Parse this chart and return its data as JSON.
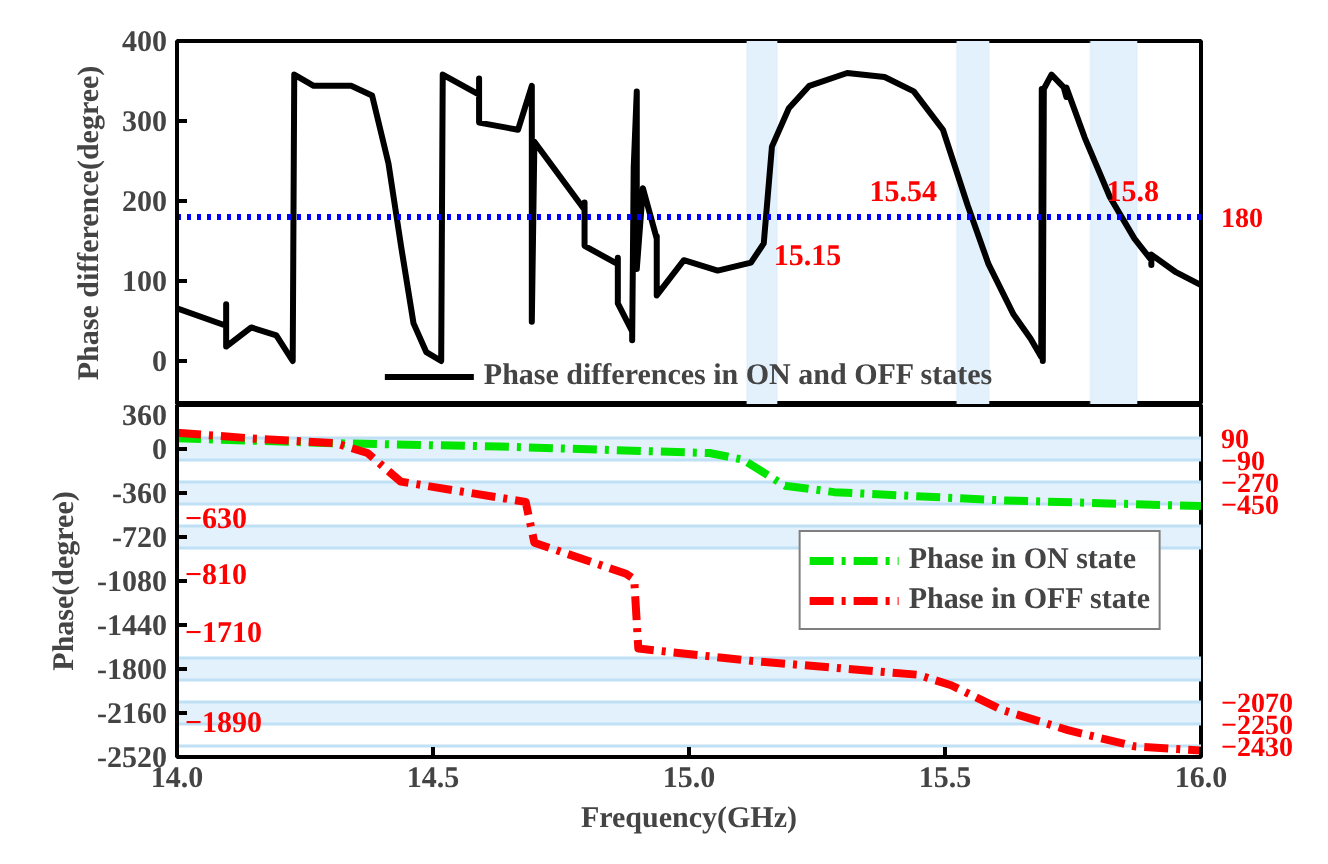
{
  "chart_data": [
    {
      "type": "line",
      "ylabel": "Phase difference(degree)",
      "xlim": [
        14,
        16
      ],
      "ylim": [
        -55,
        400
      ],
      "yticks": [
        0,
        100,
        200,
        300,
        400
      ],
      "tick_labels": "y",
      "legend": "bottom",
      "line_style": "solid",
      "grid": false,
      "series": [
        {
          "name": "Phase differences in ON and OFF states",
          "color": "#000000",
          "x": [
            14.0,
            14.096,
            14.096,
            14.096,
            14.145,
            14.194,
            14.226,
            14.229,
            14.267,
            14.34,
            14.381,
            14.413,
            14.438,
            14.462,
            14.487,
            14.516,
            14.519,
            14.59,
            14.59,
            14.59,
            14.666,
            14.693,
            14.693,
            14.698,
            14.796,
            14.796,
            14.796,
            14.861,
            14.861,
            14.861,
            14.889,
            14.889,
            14.892,
            14.898,
            14.898,
            14.91,
            14.937,
            14.937,
            14.937,
            14.99,
            15.056,
            15.121,
            15.146,
            15.162,
            15.195,
            15.235,
            15.309,
            15.382,
            15.439,
            15.496,
            15.544,
            15.585,
            15.634,
            15.667,
            15.688,
            15.689,
            15.691,
            15.693,
            15.708,
            15.732,
            15.737,
            15.737,
            15.773,
            15.822,
            15.87,
            15.903,
            15.903,
            15.903,
            15.951,
            16.0
          ],
          "values": [
            66,
            44,
            71,
            18,
            42,
            32,
            0,
            358,
            344,
            344,
            332,
            247,
            142,
            47,
            11,
            0,
            358,
            333,
            353,
            298,
            289,
            344,
            49,
            274,
            189,
            198,
            144,
            121,
            129,
            72,
            37,
            26,
            242,
            337,
            115,
            216,
            153,
            156,
            82,
            126,
            113,
            123,
            147,
            268,
            316,
            344,
            360,
            355,
            337,
            289,
            195,
            121,
            58,
            28,
            5,
            340,
            0,
            340,
            358,
            342,
            330,
            342,
            279,
            205,
            153,
            126,
            120,
            133,
            111,
            95
          ]
        }
      ],
      "ref_lines": [
        {
          "axis": "y",
          "value": 180,
          "label": "180",
          "color": "#0000ff",
          "line_style": "dotted"
        }
      ],
      "bands": [
        {
          "axis": "x",
          "from": 15.113,
          "to": 15.172,
          "color": "#e3f1fc"
        },
        {
          "axis": "x",
          "from": 15.523,
          "to": 15.586,
          "color": "#e3f1fc"
        },
        {
          "axis": "x",
          "from": 15.784,
          "to": 15.875,
          "color": "#e3f1fc"
        }
      ],
      "annotations": [
        {
          "text": "15.15",
          "x": 15.15,
          "y": 180
        },
        {
          "text": "15.54",
          "x": 15.54,
          "y": 180
        },
        {
          "text": "15.8",
          "x": 15.8,
          "y": 180
        }
      ]
    },
    {
      "type": "line",
      "xlabel": "Frequency(GHz)",
      "ylabel": "Phase(degree)",
      "xlim": [
        14,
        16
      ],
      "ylim": [
        -2520,
        360
      ],
      "xticks": [
        {
          "value": 14,
          "label": "14.0"
        },
        {
          "value": 14.5,
          "label": "14.5"
        },
        {
          "value": 15,
          "label": "15.0"
        },
        {
          "value": 15.5,
          "label": "15.5"
        },
        {
          "value": 16,
          "label": "16.0"
        }
      ],
      "yticks": [
        360,
        0,
        -360,
        -720,
        -1080,
        -1440,
        -1800,
        -2160,
        -2520
      ],
      "legend": "right",
      "line_style": "dashed",
      "grid": false,
      "series": [
        {
          "name": "Phase in ON state",
          "color": "#00e600",
          "x": [
            14.0,
            14.31,
            14.63,
            15.04,
            15.105,
            15.187,
            15.284,
            15.61,
            16.0
          ],
          "values": [
            87,
            47,
            20,
            -33,
            -87,
            -300,
            -353,
            -420,
            -467
          ]
        },
        {
          "name": "Phase in OFF state",
          "color": "#ff0000",
          "x": [
            14.0,
            14.145,
            14.31,
            14.372,
            14.437,
            14.681,
            14.698,
            14.877,
            14.893,
            14.901,
            15.121,
            15.447,
            15.512,
            15.61,
            15.74,
            15.87,
            16.0
          ],
          "values": [
            133,
            87,
            47,
            -33,
            -267,
            -433,
            -767,
            -1020,
            -1067,
            -1633,
            -1733,
            -1847,
            -1933,
            -2133,
            -2300,
            -2433,
            -2467
          ]
        }
      ],
      "ref_lines": [
        {
          "axis": "y",
          "value": 90,
          "label": "90",
          "color": "#bfe0f5"
        },
        {
          "axis": "y",
          "value": -90,
          "label": "−90",
          "color": "#bfe0f5"
        },
        {
          "axis": "y",
          "value": -270,
          "label": "−270",
          "color": "#bfe0f5"
        },
        {
          "axis": "y",
          "value": -450,
          "label": "−450",
          "color": "#bfe0f5"
        },
        {
          "axis": "y",
          "value": -630,
          "label": "−630",
          "color": "#bfe0f5"
        },
        {
          "axis": "y",
          "value": -810,
          "label": "−810",
          "color": "#bfe0f5"
        },
        {
          "axis": "y",
          "value": -1710,
          "label": "−1710",
          "color": "#bfe0f5"
        },
        {
          "axis": "y",
          "value": -1890,
          "label": "−1890",
          "color": "#bfe0f5"
        },
        {
          "axis": "y",
          "value": -2070,
          "label": "−2070",
          "color": "#bfe0f5"
        },
        {
          "axis": "y",
          "value": -2250,
          "label": "−2250",
          "color": "#bfe0f5"
        },
        {
          "axis": "y",
          "value": -2430,
          "label": "−2430",
          "color": "#bfe0f5"
        }
      ],
      "bands": [
        {
          "axis": "y",
          "from": 90,
          "to": -90,
          "color": "#e3f1fc"
        },
        {
          "axis": "y",
          "from": -270,
          "to": -450,
          "color": "#e3f1fc"
        },
        {
          "axis": "y",
          "from": -630,
          "to": -810,
          "color": "#e3f1fc"
        },
        {
          "axis": "y",
          "from": -1710,
          "to": -1890,
          "color": "#e3f1fc"
        },
        {
          "axis": "y",
          "from": -2070,
          "to": -2250,
          "color": "#e3f1fc"
        }
      ]
    }
  ]
}
